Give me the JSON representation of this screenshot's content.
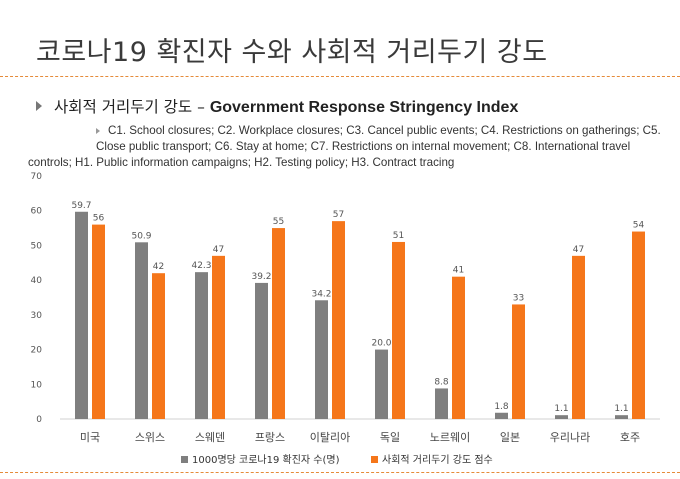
{
  "slide": {
    "title": "코로나19 확진자 수와 사회적 거리두기 강도",
    "bullet_ko": "사회적 거리두기 강도 – ",
    "bullet_en": "Government Response Stringency Index",
    "sub_line1": "C1. School closures; C2. Workplace closures; C3. Cancel public events; C4. Restrictions on gatherings; C5.",
    "sub_line2": "Close public transport; C6. Stay at home; C7. Restrictions on internal movement; C8. International travel",
    "sub_line3": "controls; H1. Public information campaigns; H2. Testing policy; H3. Contract tracing"
  },
  "chart_data": {
    "type": "bar",
    "title": "",
    "xlabel": "",
    "ylabel": "",
    "ylim": [
      0,
      70
    ],
    "yticks": [
      0,
      10,
      20,
      30,
      40,
      50,
      60,
      70
    ],
    "grid": false,
    "legend_position": "bottom",
    "categories": [
      "미국",
      "스위스",
      "스웨덴",
      "프랑스",
      "이탈리아",
      "독일",
      "노르웨이",
      "일본",
      "우리나라",
      "호주"
    ],
    "series": [
      {
        "name": "1000명당 코로나19 확진자 수(명)",
        "color": "#7f7f7f",
        "values": [
          59.7,
          50.9,
          42.3,
          39.2,
          34.2,
          20.0,
          8.8,
          1.8,
          1.1,
          1.1
        ],
        "labels": [
          "59.7",
          "50.9",
          "42.3",
          "39.2",
          "34.2",
          "20.0",
          "8.8",
          "1.8",
          "1.1",
          "1.1"
        ]
      },
      {
        "name": "사회적 거리두기 강도 점수",
        "color": "#f5761a",
        "values": [
          56,
          42,
          47,
          55,
          57,
          51,
          41,
          33,
          47,
          54
        ],
        "labels": [
          "56",
          "42",
          "47",
          "55",
          "57",
          "51",
          "41",
          "33",
          "47",
          "54"
        ]
      }
    ]
  }
}
